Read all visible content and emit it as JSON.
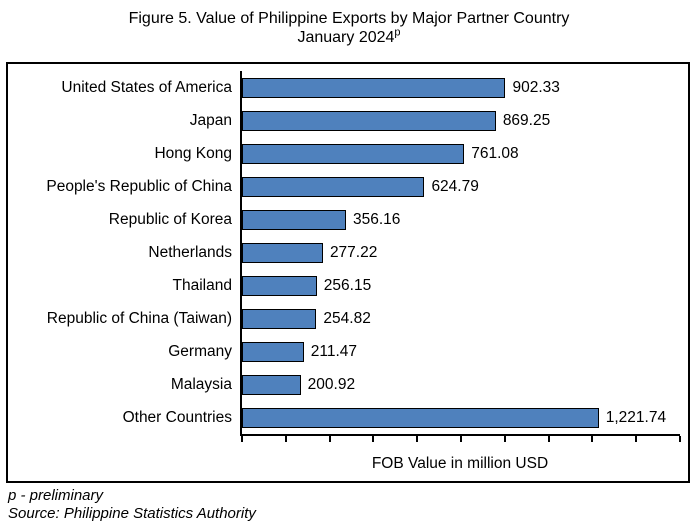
{
  "title": {
    "line1": "Figure 5. Value of Philippine Exports by Major Partner Country",
    "line2": "January 2024",
    "superscript": "p"
  },
  "chart_data": {
    "type": "bar",
    "orientation": "horizontal",
    "categories": [
      "United States of America",
      "Japan",
      "Hong Kong",
      "People's Republic of China",
      "Republic of Korea",
      "Netherlands",
      "Thailand",
      "Republic of China (Taiwan)",
      "Germany",
      "Malaysia",
      "Other Countries"
    ],
    "values": [
      902.33,
      869.25,
      761.08,
      624.79,
      356.16,
      277.22,
      256.15,
      254.82,
      211.47,
      200.92,
      1221.74
    ],
    "value_labels": [
      "902.33",
      "869.25",
      "761.08",
      "624.79",
      "356.16",
      "277.22",
      "256.15",
      "254.82",
      "211.47",
      "200.92",
      "1,221.74"
    ],
    "title": "Figure 5. Value of Philippine Exports by Major Partner Country January 2024p",
    "xlabel": "FOB Value in million USD",
    "ylabel": "",
    "xlim": [
      0,
      1500
    ],
    "tick_count": 11,
    "x_tick_labels_visible": false,
    "grid": false,
    "legend": "none",
    "bar_color": "#4F81BD",
    "bar_border_color": "#000000",
    "axis_color": "#000000"
  },
  "footer": {
    "note": "p - preliminary",
    "source": "Source: Philippine Statistics Authority"
  }
}
